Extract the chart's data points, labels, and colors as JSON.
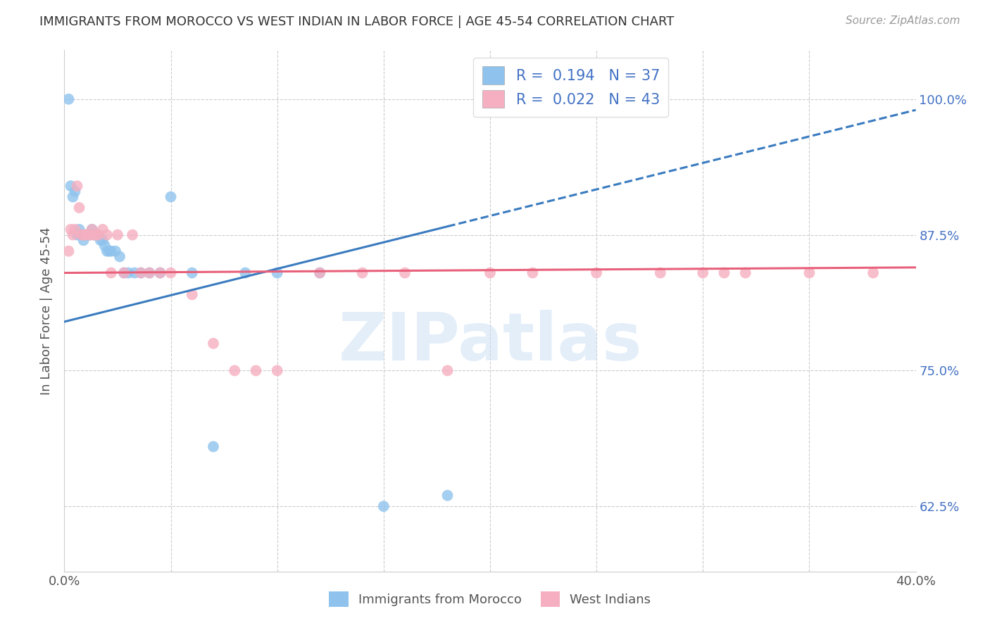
{
  "title": "IMMIGRANTS FROM MOROCCO VS WEST INDIAN IN LABOR FORCE | AGE 45-54 CORRELATION CHART",
  "source": "Source: ZipAtlas.com",
  "ylabel": "In Labor Force | Age 45-54",
  "xlim": [
    0.0,
    0.4
  ],
  "ylim": [
    0.565,
    1.045
  ],
  "yticks_right": [
    0.625,
    0.75,
    0.875,
    1.0
  ],
  "ytick_right_labels": [
    "62.5%",
    "75.0%",
    "87.5%",
    "100.0%"
  ],
  "morocco_color": "#8fc3ed",
  "westindian_color": "#f5afc0",
  "morocco_line_color": "#3a7bbf",
  "westindian_line_color": "#e8607a",
  "morocco_R": 0.194,
  "morocco_N": 37,
  "westindian_R": 0.022,
  "westindian_N": 43,
  "watermark": "ZIPatlas",
  "legend_label_morocco": "Immigrants from Morocco",
  "legend_label_westindian": "West Indians",
  "morocco_x": [
    0.002,
    0.003,
    0.004,
    0.005,
    0.006,
    0.007,
    0.008,
    0.009,
    0.01,
    0.011,
    0.012,
    0.013,
    0.014,
    0.015,
    0.016,
    0.017,
    0.018,
    0.019,
    0.02,
    0.021,
    0.022,
    0.024,
    0.026,
    0.028,
    0.03,
    0.033,
    0.036,
    0.04,
    0.045,
    0.05,
    0.06,
    0.07,
    0.085,
    0.1,
    0.12,
    0.15,
    0.18
  ],
  "morocco_y": [
    1.0,
    0.92,
    0.91,
    0.915,
    0.875,
    0.88,
    0.875,
    0.87,
    0.875,
    0.875,
    0.875,
    0.88,
    0.875,
    0.875,
    0.875,
    0.87,
    0.87,
    0.865,
    0.86,
    0.86,
    0.86,
    0.86,
    0.855,
    0.84,
    0.84,
    0.84,
    0.84,
    0.84,
    0.84,
    0.91,
    0.84,
    0.68,
    0.84,
    0.84,
    0.84,
    0.625,
    0.635
  ],
  "westindian_x": [
    0.002,
    0.003,
    0.004,
    0.005,
    0.006,
    0.007,
    0.008,
    0.009,
    0.01,
    0.011,
    0.012,
    0.013,
    0.014,
    0.015,
    0.016,
    0.018,
    0.02,
    0.022,
    0.025,
    0.028,
    0.032,
    0.036,
    0.04,
    0.045,
    0.05,
    0.06,
    0.07,
    0.08,
    0.09,
    0.1,
    0.12,
    0.14,
    0.16,
    0.18,
    0.2,
    0.22,
    0.25,
    0.28,
    0.3,
    0.31,
    0.32,
    0.35,
    0.38
  ],
  "westindian_y": [
    0.86,
    0.88,
    0.875,
    0.88,
    0.92,
    0.9,
    0.875,
    0.875,
    0.875,
    0.875,
    0.875,
    0.88,
    0.875,
    0.875,
    0.875,
    0.88,
    0.875,
    0.84,
    0.875,
    0.84,
    0.875,
    0.84,
    0.84,
    0.84,
    0.84,
    0.82,
    0.775,
    0.75,
    0.75,
    0.75,
    0.84,
    0.84,
    0.84,
    0.75,
    0.84,
    0.84,
    0.84,
    0.84,
    0.84,
    0.84,
    0.84,
    0.84,
    0.84
  ]
}
